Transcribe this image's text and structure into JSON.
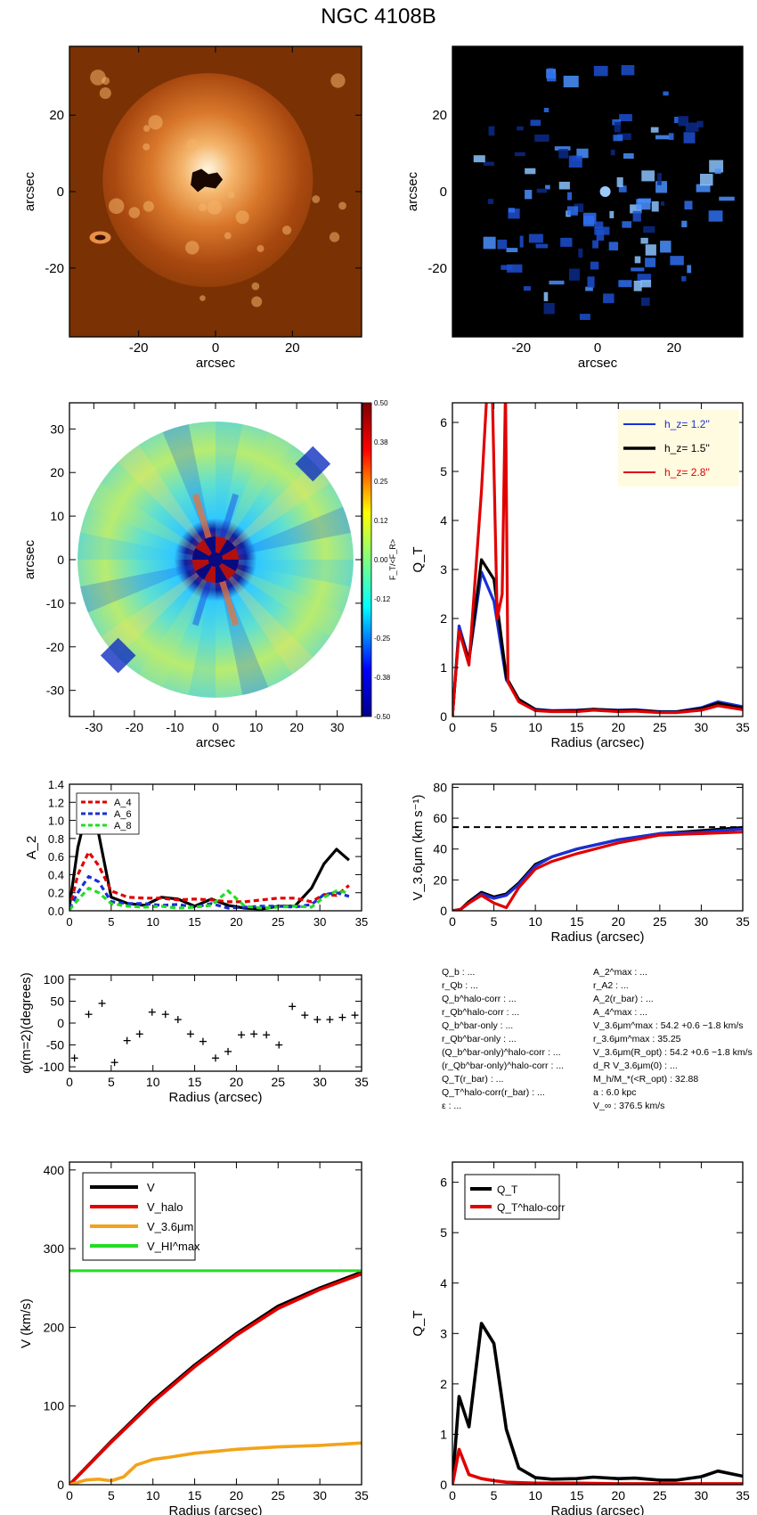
{
  "title": "NGC 4108B",
  "colors": {
    "black": "#000000",
    "red": "#e00000",
    "blue": "#1a2fd6",
    "orange": "#f2a31b",
    "green": "#22dd22",
    "legendBg": "#fffbe0"
  },
  "chart_data": [
    {
      "id": "p1",
      "type": "heatmap",
      "colormap": "orange",
      "xlabel": "arcsec",
      "ylabel": "arcsec",
      "xlim": [
        -38,
        38
      ],
      "ylim": [
        -38,
        38
      ],
      "xticks": [
        -20,
        0,
        20
      ],
      "yticks": [
        -20,
        0,
        20
      ]
    },
    {
      "id": "p2",
      "type": "heatmap",
      "colormap": "blue",
      "xlabel": "arcsec",
      "ylabel": "arcsec",
      "xlim": [
        -38,
        38
      ],
      "ylim": [
        -38,
        38
      ],
      "xticks": [
        -20,
        0,
        20
      ],
      "yticks": [
        -20,
        0,
        20
      ]
    },
    {
      "id": "p3",
      "type": "heatmap",
      "colormap": "jet",
      "xlabel": "arcsec",
      "ylabel": "arcsec",
      "xlim": [
        -36,
        36
      ],
      "ylim": [
        -36,
        36
      ],
      "xticks": [
        -30,
        -20,
        -10,
        0,
        10,
        20,
        30
      ],
      "yticks": [
        -30,
        -20,
        -10,
        0,
        10,
        20,
        30
      ],
      "colorbar": {
        "label": "F_T/<F_R>",
        "range": [
          -0.5,
          0.5
        ],
        "ticks": [
          "0.50",
          "0.38",
          "0.25",
          "0.12",
          "0.00",
          "-0.12",
          "-0.25",
          "-0.38",
          "-0.50"
        ]
      }
    },
    {
      "id": "p4",
      "type": "line",
      "xlabel": "Radius (arcsec)",
      "ylabel": "Q_T",
      "xlim": [
        0,
        35
      ],
      "ylim": [
        0,
        6.4
      ],
      "xticks": [
        0,
        5,
        10,
        15,
        20,
        25,
        30,
        35
      ],
      "yticks": [
        0,
        1,
        2,
        3,
        4,
        5,
        6
      ],
      "legend": {
        "position": "top-right"
      },
      "series": [
        {
          "name": "h_z= 1.2''",
          "color": "#1a2fd6",
          "x": [
            0,
            0.8,
            2,
            3.5,
            5,
            6.5,
            8,
            10,
            12,
            15,
            17,
            20,
            22,
            25,
            27,
            30,
            32,
            35
          ],
          "y": [
            0,
            1.85,
            1.15,
            2.95,
            2.35,
            0.75,
            0.35,
            0.15,
            0.12,
            0.13,
            0.15,
            0.13,
            0.14,
            0.1,
            0.1,
            0.18,
            0.3,
            0.2
          ]
        },
        {
          "name": "h_z= 1.5''",
          "color": "#000000",
          "x": [
            0,
            0.8,
            2,
            3.5,
            5,
            6.5,
            8,
            10,
            12,
            15,
            17,
            20,
            22,
            25,
            27,
            30,
            32,
            35
          ],
          "y": [
            0,
            1.75,
            1.15,
            3.2,
            2.8,
            0.8,
            0.35,
            0.14,
            0.11,
            0.12,
            0.15,
            0.12,
            0.13,
            0.09,
            0.09,
            0.16,
            0.27,
            0.17
          ]
        },
        {
          "name": "h_z= 2.8''",
          "color": "#e00000",
          "x": [
            0,
            0.8,
            2,
            3.5,
            4.2,
            4.8,
            5.4,
            6.0,
            6.4,
            6.7,
            8,
            10,
            12,
            15,
            17,
            20,
            22,
            25,
            27,
            30,
            32,
            35
          ],
          "y": [
            0,
            1.75,
            1.05,
            4.6,
            7.0,
            7.0,
            2.0,
            2.5,
            7.0,
            0.7,
            0.3,
            0.12,
            0.1,
            0.1,
            0.13,
            0.1,
            0.11,
            0.08,
            0.08,
            0.13,
            0.22,
            0.14
          ]
        }
      ]
    },
    {
      "id": "p5",
      "type": "line",
      "xlabel": "",
      "ylabel": "A_2",
      "xlim": [
        0,
        35
      ],
      "ylim": [
        0,
        1.4
      ],
      "xticks": [
        0,
        5,
        10,
        15,
        20,
        25,
        30,
        35
      ],
      "yticks": [
        0.0,
        0.2,
        0.4,
        0.6,
        0.8,
        1.0,
        1.2,
        1.4
      ],
      "legend": {
        "position": "top-left"
      },
      "series": [
        {
          "name": "",
          "color": "#000000",
          "dash": "",
          "x": [
            0,
            1,
            2.3,
            3.5,
            5,
            7,
            9,
            11,
            13,
            15,
            17,
            19,
            21,
            23,
            25,
            27,
            29,
            30.5,
            32,
            33.5
          ],
          "y": [
            0.05,
            0.7,
            1.2,
            0.85,
            0.15,
            0.08,
            0.06,
            0.15,
            0.13,
            0.05,
            0.13,
            0.06,
            0.03,
            0.02,
            0.05,
            0.05,
            0.25,
            0.52,
            0.68,
            0.56
          ]
        },
        {
          "name": "A_4",
          "color": "#e00000",
          "dash": "6,4",
          "x": [
            0,
            1,
            2.3,
            3.5,
            5,
            7,
            9,
            11,
            13,
            15,
            17,
            19,
            21,
            23,
            25,
            27,
            29,
            30.5,
            32,
            33.5
          ],
          "y": [
            0.02,
            0.4,
            0.65,
            0.5,
            0.22,
            0.15,
            0.14,
            0.14,
            0.12,
            0.13,
            0.12,
            0.1,
            0.1,
            0.12,
            0.14,
            0.14,
            0.1,
            0.18,
            0.17,
            0.28
          ]
        },
        {
          "name": "A_6",
          "color": "#1a2fd6",
          "dash": "6,4",
          "x": [
            0,
            1,
            2.3,
            3.5,
            5,
            7,
            9,
            11,
            13,
            15,
            17,
            19,
            21,
            23,
            25,
            27,
            29,
            30.5,
            32,
            33.5
          ],
          "y": [
            0.02,
            0.2,
            0.38,
            0.32,
            0.1,
            0.08,
            0.08,
            0.06,
            0.07,
            0.04,
            0.08,
            0.03,
            0.04,
            0.05,
            0.05,
            0.04,
            0.07,
            0.18,
            0.2,
            0.16
          ]
        },
        {
          "name": "A_8",
          "color": "#22dd22",
          "dash": "6,4",
          "x": [
            0,
            1,
            2.3,
            3.5,
            5,
            7,
            9,
            11,
            13,
            15,
            17,
            19,
            21,
            23,
            25,
            27,
            29,
            30.5,
            32,
            33.5
          ],
          "y": [
            0.01,
            0.12,
            0.25,
            0.2,
            0.08,
            0.05,
            0.04,
            0.05,
            0.03,
            0.04,
            0.06,
            0.22,
            0.05,
            0.03,
            0.04,
            0.05,
            0.04,
            0.15,
            0.22,
            0.2
          ]
        }
      ]
    },
    {
      "id": "p6",
      "type": "line",
      "xlabel": "Radius (arcsec)",
      "ylabel": "V_3.6μm (km s⁻¹)",
      "xlim": [
        0,
        35
      ],
      "ylim": [
        0,
        82
      ],
      "xticks": [
        0,
        5,
        10,
        15,
        20,
        25,
        30,
        35
      ],
      "yticks": [
        0,
        20,
        40,
        60,
        80
      ],
      "hline": {
        "y": 54.2,
        "color": "#000000",
        "dash": "7,5"
      },
      "series": [
        {
          "name": "",
          "color": "#000000",
          "x": [
            0,
            1,
            2,
            3.5,
            5,
            6.5,
            8,
            10,
            12,
            15,
            20,
            25,
            30,
            35
          ],
          "y": [
            0,
            1,
            6,
            12,
            9,
            11,
            18,
            30,
            35,
            40,
            46,
            50,
            52,
            54
          ]
        },
        {
          "name": "",
          "color": "#1a2fd6",
          "x": [
            0,
            1,
            2,
            3.5,
            5,
            6.5,
            8,
            10,
            12,
            15,
            20,
            25,
            30,
            35
          ],
          "y": [
            0,
            1,
            5,
            11,
            8,
            10,
            17,
            29,
            35,
            40,
            46,
            50,
            51,
            53
          ]
        },
        {
          "name": "",
          "color": "#e00000",
          "x": [
            0,
            1,
            2,
            3.5,
            5,
            6.5,
            8,
            10,
            12,
            15,
            20,
            25,
            30,
            35
          ],
          "y": [
            0,
            1,
            5,
            10,
            5,
            2,
            15,
            27,
            32,
            37,
            44,
            49,
            50,
            51
          ]
        }
      ]
    },
    {
      "id": "p7",
      "type": "scatter",
      "xlabel": "Radius (arcsec)",
      "ylabel": "φ(m=2)(degrees)",
      "xlim": [
        0,
        35
      ],
      "ylim": [
        -110,
        110
      ],
      "xticks": [
        0,
        5,
        10,
        15,
        20,
        25,
        30,
        35
      ],
      "yticks": [
        -100,
        -50,
        0,
        50,
        100
      ],
      "series": [
        {
          "name": "",
          "color": "#000000",
          "x": [
            0.6,
            2.3,
            3.9,
            5.4,
            6.9,
            8.4,
            9.9,
            11.5,
            13.0,
            14.5,
            16.0,
            17.5,
            19.0,
            20.6,
            22.1,
            23.6,
            25.1,
            26.7,
            28.2,
            29.7,
            31.2,
            32.7,
            34.2
          ],
          "y": [
            -80,
            20,
            45,
            -90,
            -40,
            -25,
            25,
            20,
            8,
            -25,
            -42,
            -80,
            -65,
            -27,
            -25,
            -27,
            -50,
            38,
            18,
            8,
            8,
            13,
            18
          ]
        }
      ]
    },
    {
      "id": "p8",
      "type": "line",
      "xlabel": "Radius (arcsec)",
      "ylabel": "V (km/s)",
      "xlim": [
        0,
        35
      ],
      "ylim": [
        0,
        410
      ],
      "xticks": [
        0,
        5,
        10,
        15,
        20,
        25,
        30,
        35
      ],
      "yticks": [
        0,
        100,
        200,
        300,
        400
      ],
      "legend": {
        "position": "top-left"
      },
      "series": [
        {
          "name": "V",
          "color": "#000000",
          "x": [
            0,
            5,
            10,
            15,
            20,
            25,
            30,
            35
          ],
          "y": [
            0,
            55,
            107,
            152,
            192,
            227,
            250,
            270
          ]
        },
        {
          "name": "V_halo",
          "color": "#e00000",
          "x": [
            0,
            5,
            10,
            15,
            20,
            25,
            30,
            35
          ],
          "y": [
            0,
            54,
            105,
            150,
            190,
            224,
            248,
            268
          ]
        },
        {
          "name": "V_3.6μm",
          "color": "#f2a31b",
          "x": [
            0,
            1,
            2,
            3.5,
            5,
            6.5,
            8,
            10,
            12,
            15,
            20,
            25,
            30,
            35
          ],
          "y": [
            0,
            3,
            6,
            7,
            5,
            10,
            25,
            32,
            35,
            40,
            45,
            48,
            50,
            53
          ]
        },
        {
          "name": "V_HI^max",
          "color": "#22dd22",
          "hline": 272
        }
      ]
    },
    {
      "id": "p9",
      "type": "line",
      "xlabel": "Radius (arcsec)",
      "ylabel": "Q_T",
      "xlim": [
        0,
        35
      ],
      "ylim": [
        0,
        6.4
      ],
      "xticks": [
        0,
        5,
        10,
        15,
        20,
        25,
        30,
        35
      ],
      "yticks": [
        0,
        1,
        2,
        3,
        4,
        5,
        6
      ],
      "legend": {
        "position": "top-left"
      },
      "series": [
        {
          "name": "Q_T",
          "color": "#000000",
          "x": [
            0,
            0.8,
            2,
            3.5,
            5,
            6.5,
            8,
            10,
            12,
            15,
            17,
            20,
            22,
            25,
            27,
            30,
            32,
            35
          ],
          "y": [
            0,
            1.75,
            1.15,
            3.2,
            2.8,
            1.1,
            0.33,
            0.14,
            0.11,
            0.12,
            0.15,
            0.12,
            0.13,
            0.09,
            0.09,
            0.16,
            0.27,
            0.17
          ]
        },
        {
          "name": "Q_T^halo-corr",
          "color": "#e00000",
          "x": [
            0,
            0.8,
            2,
            3.5,
            5,
            6.5,
            8,
            10,
            15,
            20,
            25,
            30,
            35
          ],
          "y": [
            0,
            0.7,
            0.2,
            0.12,
            0.08,
            0.05,
            0.04,
            0.03,
            0.03,
            0.02,
            0.02,
            0.02,
            0.02
          ]
        }
      ]
    }
  ],
  "params": {
    "left": [
      "Q_b : ...",
      "r_Qb : ...",
      "Q_b^halo-corr : ...",
      "r_Qb^halo-corr : ...",
      "Q_b^bar-only : ...",
      "r_Qb^bar-only : ...",
      "(Q_b^bar-only)^halo-corr : ...",
      "(r_Qb^bar-only)^halo-corr : ...",
      "Q_T(r_bar) : ...",
      "Q_T^halo-corr(r_bar) : ...",
      "ε : ..."
    ],
    "right": [
      "A_2^max : ...",
      "r_A2 : ...",
      "A_2(r_bar) : ...",
      "A_4^max : ...",
      "V_3.6μm^max : 54.2 +0.6 −1.8 km/s",
      "r_3.6μm^max : 35.25",
      "V_3.6μm(R_opt) : 54.2 +0.6 −1.8 km/s",
      "d_R V_3.6μm(0) : ...",
      "M_h/M_*(<R_opt) : 32.88",
      "a : 6.0 kpc",
      "V_∞ : 376.5 km/s"
    ]
  }
}
